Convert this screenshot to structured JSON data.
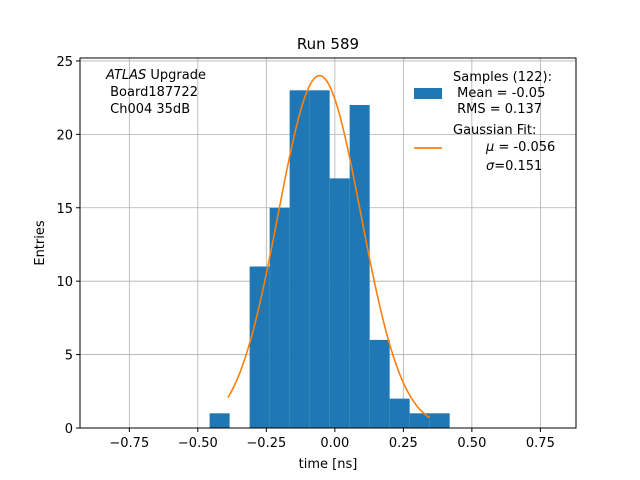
{
  "chart_data": {
    "type": "bar",
    "title": "Run 589",
    "xlabel": "time [ns]",
    "ylabel": "Entries",
    "xlim": [
      -0.93,
      0.88
    ],
    "ylim": [
      0,
      25.2
    ],
    "grid": true,
    "xticks": [
      -0.75,
      -0.5,
      -0.25,
      0.0,
      0.25,
      0.5,
      0.75
    ],
    "xtick_labels": [
      "−0.75",
      "−0.50",
      "−0.25",
      "0.00",
      "0.25",
      "0.50",
      "0.75"
    ],
    "yticks": [
      0,
      5,
      10,
      15,
      20,
      25
    ],
    "ytick_labels": [
      "0",
      "5",
      "10",
      "15",
      "20",
      "25"
    ],
    "histogram": {
      "bin_edges": [
        -0.457,
        -0.384,
        -0.311,
        -0.238,
        -0.165,
        -0.092,
        -0.019,
        0.054,
        0.127,
        0.2,
        0.273,
        0.346,
        0.419
      ],
      "counts": [
        1,
        0,
        11,
        15,
        23,
        23,
        17,
        22,
        6,
        2,
        1,
        1
      ],
      "color": "#1f77b4"
    },
    "fit": {
      "type": "gaussian",
      "amplitude": 24,
      "mu": -0.056,
      "sigma": 0.151,
      "x_range": [
        -0.39,
        0.345
      ],
      "color": "#ff7f0e"
    },
    "annotation": {
      "line1_italic": "ATLAS",
      "line1_rest": " Upgrade",
      "line2": " Board187722",
      "line3": " Ch004 35dB"
    },
    "legend": {
      "placement": "top-right",
      "samples_line1": "Samples (122):",
      "samples_line2": " Mean = -0.05",
      "samples_line3": " RMS = 0.137",
      "fit_line1": "Gaussian Fit:",
      "fit_line2_sym": "μ",
      "fit_line2_rest": " = -0.056",
      "fit_line3_sym": "σ",
      "fit_line3_rest": "=0.151"
    }
  }
}
